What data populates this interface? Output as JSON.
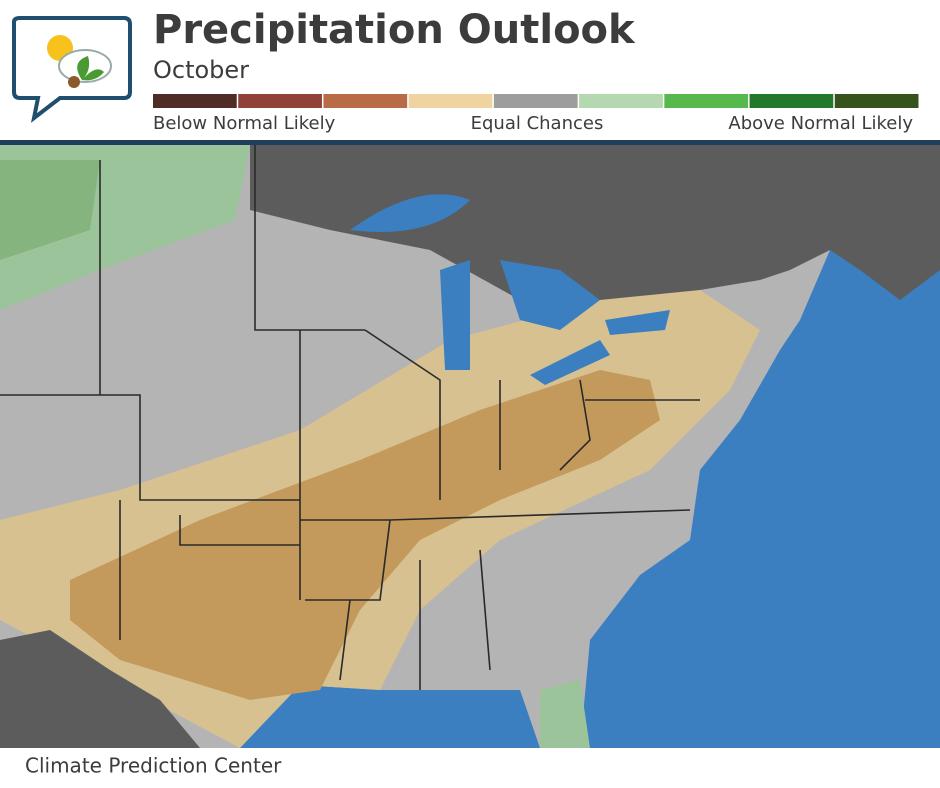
{
  "header": {
    "title": "Precipitation Outlook",
    "subtitle": "October"
  },
  "legend": {
    "colors": [
      "#4f2c26",
      "#914137",
      "#b86b46",
      "#efd3a0",
      "#9d9d9d",
      "#b4d9b1",
      "#57b94d",
      "#23782c",
      "#37531c"
    ],
    "labels": [
      "Below Normal Likely",
      "Equal Chances",
      "Above Normal Likely"
    ]
  },
  "footer": {
    "credit": "Climate Prediction Center"
  }
}
